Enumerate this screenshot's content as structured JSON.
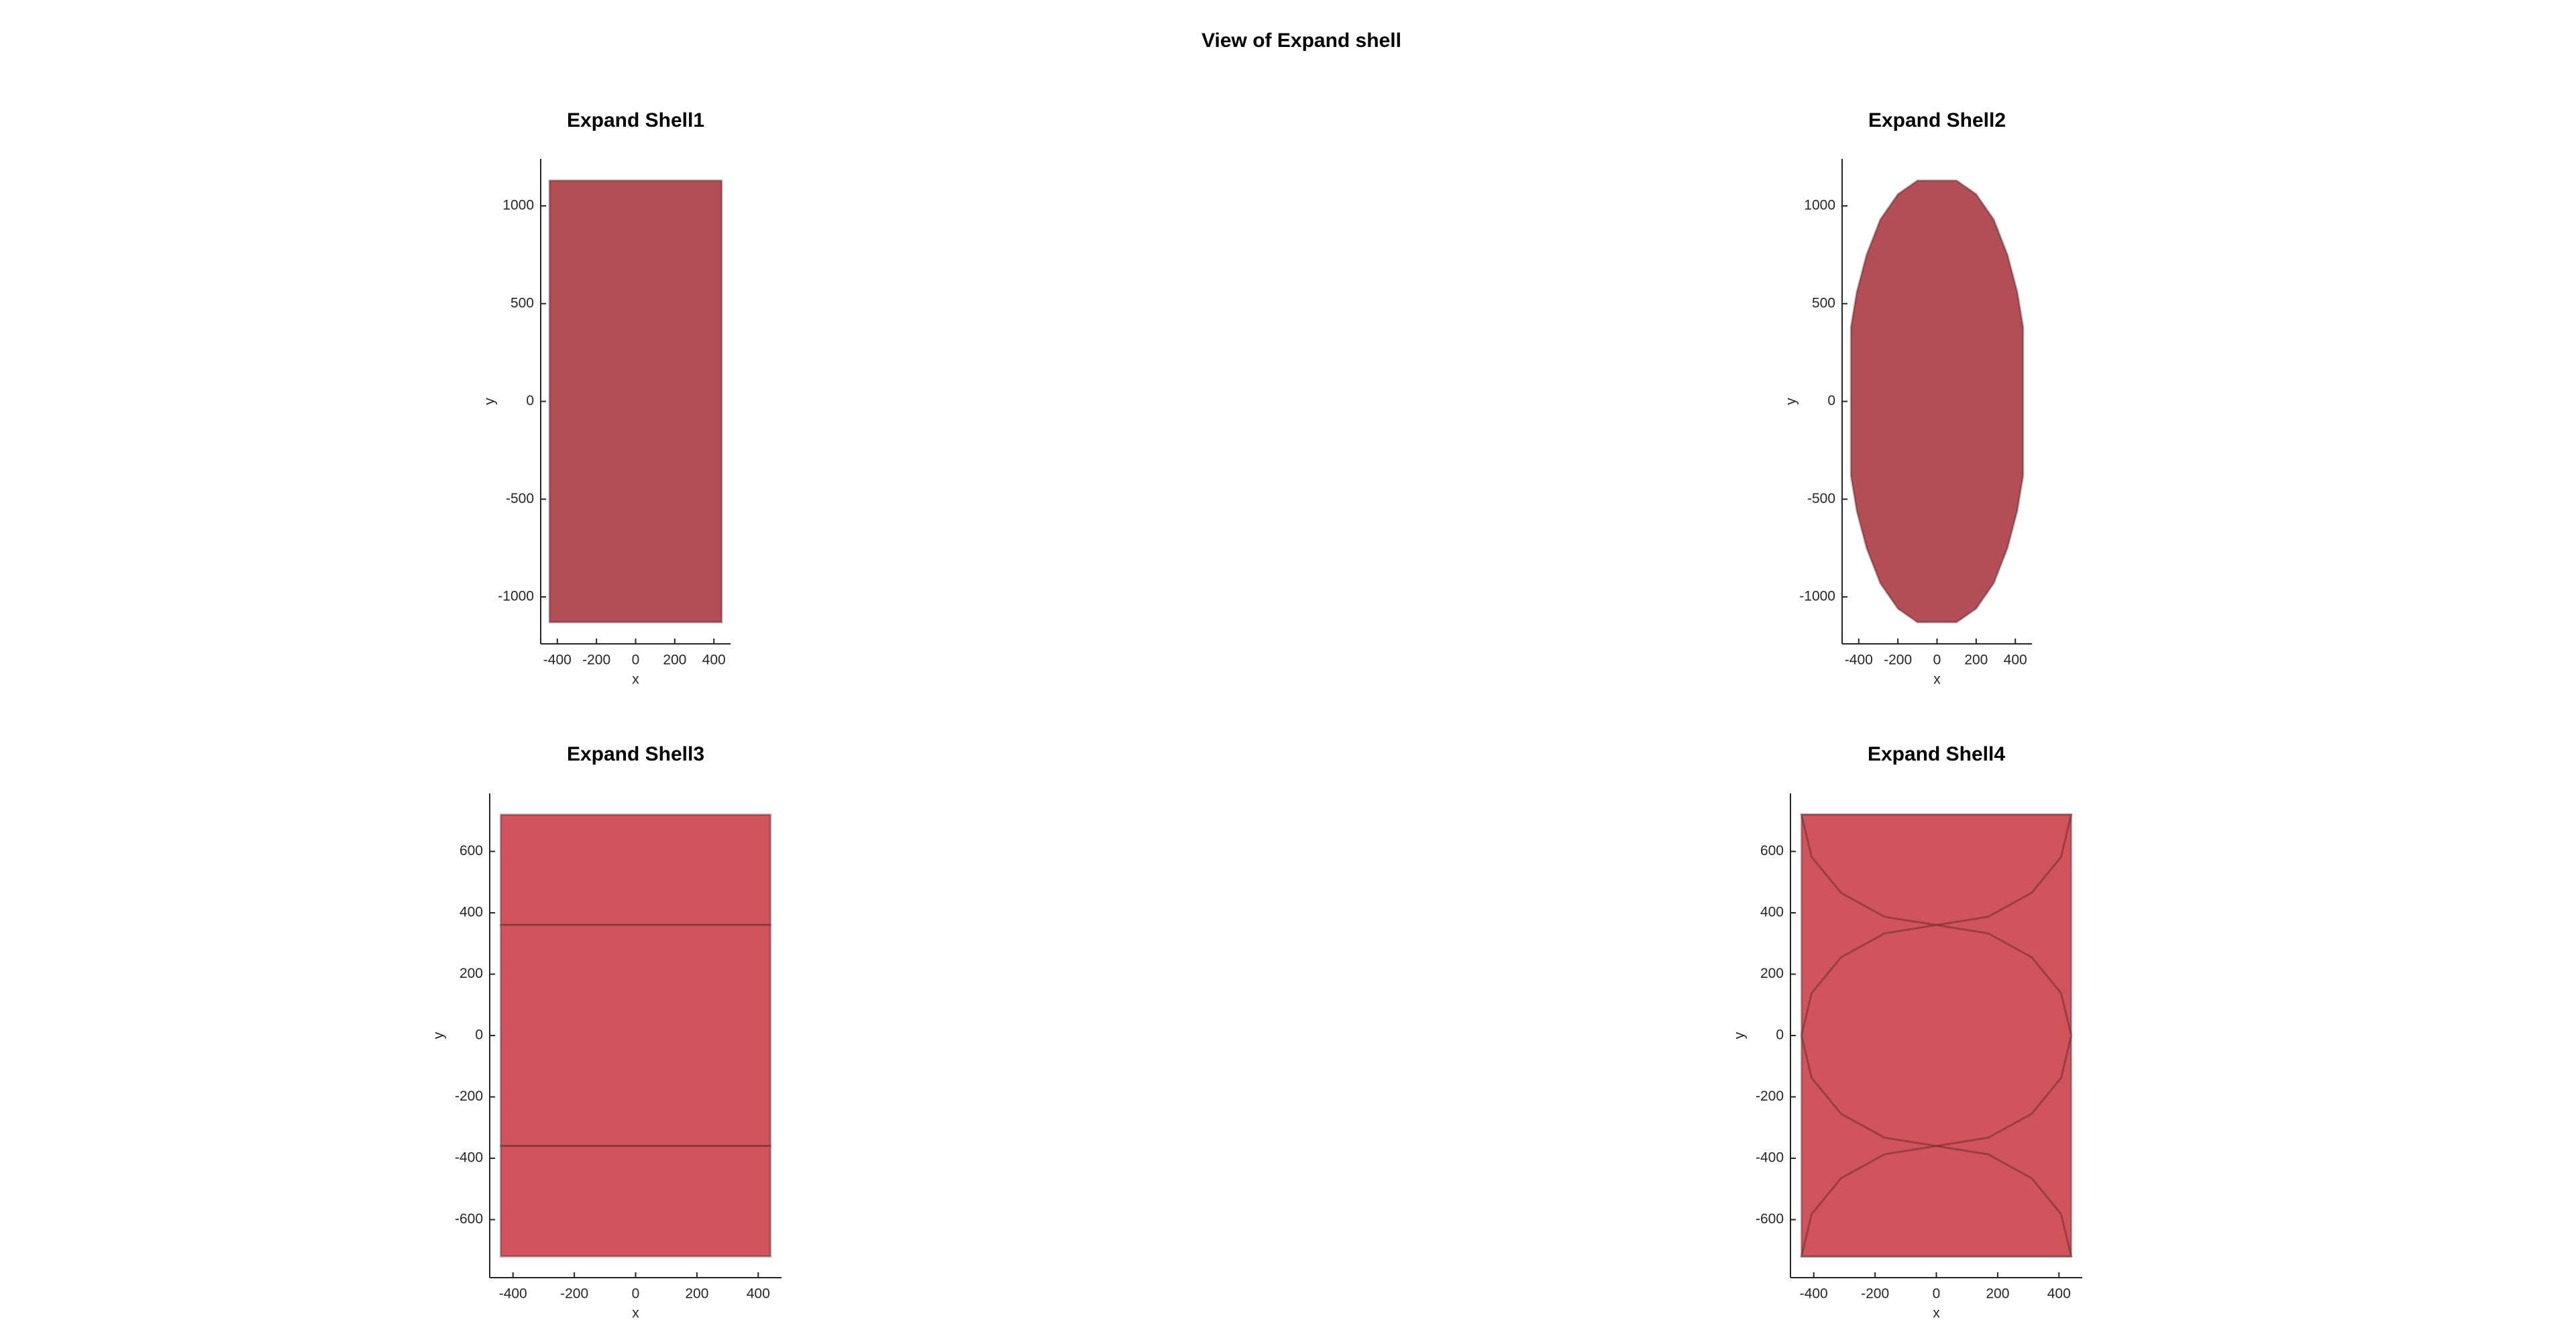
{
  "title": "View of Expand shell",
  "chart_data": [
    {
      "type": "patch",
      "title": "Expand Shell1",
      "xlabel": "x",
      "ylabel": "y",
      "xlim": [
        -485,
        485
      ],
      "ylim": [
        -1240,
        1240
      ],
      "xticks": [
        -400,
        -200,
        0,
        200,
        400
      ],
      "yticks": [
        -1000,
        -500,
        0,
        500,
        1000
      ],
      "color": "#b24f56",
      "series": [
        {
          "x": [
            -440,
            440,
            440,
            -440
          ],
          "y": [
            1130,
            1130,
            -1130,
            -1130
          ]
        }
      ]
    },
    {
      "type": "patch",
      "title": "Expand Shell2",
      "xlabel": "x",
      "ylabel": "y",
      "xlim": [
        -485,
        485
      ],
      "ylim": [
        -1240,
        1240
      ],
      "xticks": [
        -400,
        -200,
        0,
        200,
        400
      ],
      "yticks": [
        -1000,
        -500,
        0,
        500,
        1000
      ],
      "color": "#b24f56",
      "series": [
        {
          "x": [
            -100,
            100,
            200,
            290,
            360,
            410,
            440,
            440,
            410,
            360,
            290,
            200,
            100,
            -100,
            -200,
            -290,
            -360,
            -410,
            -440,
            -440,
            -410,
            -360,
            -290,
            -200
          ],
          "y": [
            1130,
            1130,
            1060,
            930,
            750,
            560,
            380,
            -380,
            -560,
            -750,
            -930,
            -1060,
            -1130,
            -1130,
            -1060,
            -930,
            -750,
            -560,
            -380,
            380,
            560,
            750,
            930,
            1060
          ]
        }
      ]
    },
    {
      "type": "patch",
      "title": "Expand Shell3",
      "xlabel": "x",
      "ylabel": "y",
      "xlim": [
        -476,
        476
      ],
      "ylim": [
        -789,
        789
      ],
      "xticks": [
        -400,
        -200,
        0,
        200,
        400
      ],
      "yticks": [
        -600,
        -400,
        -200,
        0,
        200,
        400,
        600
      ],
      "color": "#d0545b",
      "series": [
        {
          "x": [
            -440,
            440,
            440,
            -440
          ],
          "y": [
            720,
            720,
            360,
            360
          ]
        },
        {
          "x": [
            -440,
            440,
            440,
            -440
          ],
          "y": [
            360,
            360,
            -360,
            -360
          ]
        },
        {
          "x": [
            -440,
            440,
            440,
            -440
          ],
          "y": [
            -360,
            -360,
            -720,
            -720
          ]
        }
      ]
    },
    {
      "type": "patch",
      "title": "Expand Shell4",
      "xlabel": "x",
      "ylabel": "y",
      "xlim": [
        -476,
        476
      ],
      "ylim": [
        -789,
        789
      ],
      "xticks": [
        -400,
        -200,
        0,
        200,
        400
      ],
      "yticks": [
        -600,
        -400,
        -200,
        0,
        200,
        400,
        600
      ],
      "color": "#d0545b",
      "series": [
        {
          "x": [
            -440,
            440,
            440,
            -440
          ],
          "y": [
            720,
            720,
            -720,
            -720
          ]
        },
        {
          "x": [
            -440,
            -407,
            -311,
            -169,
            0,
            169,
            311,
            407,
            440
          ],
          "y": [
            720,
            582,
            465,
            387,
            360,
            387,
            465,
            582,
            720
          ]
        },
        {
          "x": [
            440,
            407,
            311,
            169,
            0,
            -169,
            -311,
            -407,
            -440,
            -407,
            -311,
            -169,
            0,
            169,
            311,
            407
          ],
          "y": [
            0,
            138,
            255,
            333,
            360,
            333,
            255,
            138,
            0,
            -138,
            -255,
            -333,
            -360,
            -333,
            -255,
            -138
          ]
        },
        {
          "x": [
            -440,
            -407,
            -311,
            -169,
            0,
            169,
            311,
            407,
            440
          ],
          "y": [
            -720,
            -582,
            -465,
            -387,
            -360,
            -387,
            -465,
            -582,
            -720
          ]
        }
      ]
    }
  ]
}
